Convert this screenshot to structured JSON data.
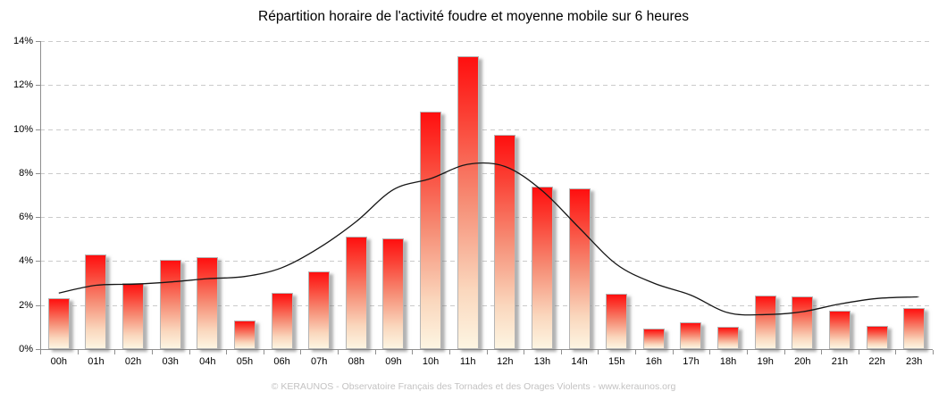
{
  "title": "Répartition horaire de l'activité foudre et moyenne mobile sur 6 heures",
  "footer": "© KERAUNOS - Observatoire Français des Tornades et des Orages Violents - www.keraunos.org",
  "chart_data": {
    "type": "bar",
    "title": "Répartition horaire de l'activité foudre et moyenne mobile sur 6 heures",
    "categories": [
      "00h",
      "01h",
      "02h",
      "03h",
      "04h",
      "05h",
      "06h",
      "07h",
      "08h",
      "09h",
      "10h",
      "11h",
      "12h",
      "13h",
      "14h",
      "15h",
      "16h",
      "17h",
      "18h",
      "19h",
      "20h",
      "21h",
      "22h",
      "23h"
    ],
    "series": [
      {
        "name": "Activité foudre",
        "type": "bar",
        "values": [
          2.3,
          4.3,
          3.0,
          4.05,
          4.2,
          1.3,
          2.55,
          3.55,
          5.1,
          5.05,
          10.8,
          13.3,
          9.75,
          7.4,
          7.3,
          2.5,
          0.95,
          1.2,
          1.0,
          2.45,
          2.4,
          1.75,
          1.05,
          1.85
        ]
      },
      {
        "name": "Moyenne mobile sur 6 heures",
        "type": "line",
        "values": [
          2.55,
          2.9,
          2.95,
          3.05,
          3.2,
          3.3,
          3.7,
          4.6,
          5.8,
          7.25,
          7.75,
          8.4,
          8.3,
          7.2,
          5.5,
          3.85,
          3.0,
          2.45,
          1.65,
          1.57,
          1.7,
          2.05,
          2.3,
          2.37
        ]
      }
    ],
    "xlabel": "",
    "ylabel": "",
    "ylim": [
      0,
      14
    ],
    "ytick_step": 2,
    "ytick_suffix": "%",
    "grid": "horizontal-dashed",
    "legend_position": "none",
    "colors": {
      "bar_gradient": [
        "#ff0f0f",
        "#fb4034",
        "#f68e76",
        "#fad7bd",
        "#fdf5e2"
      ],
      "bar_border": "#b5b5b5",
      "line": "#161616",
      "grid": "#cbcbcb",
      "axis": "#8f8f8f",
      "title_text": "#000000",
      "footer_text": "#c3c2c2"
    }
  }
}
